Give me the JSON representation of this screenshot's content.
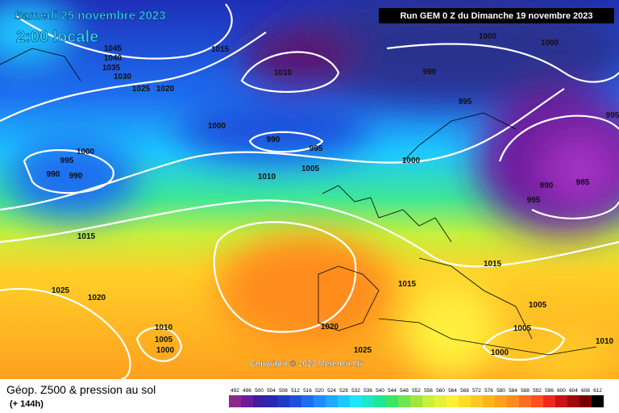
{
  "header": {
    "date": "Samedi 25 novembre 2023",
    "time": "2:00 locale",
    "run": "Run GEM 0 Z du Dimanche 19 novembre 2023"
  },
  "isobar_labels": [
    "1045",
    "1040",
    "1035",
    "1030",
    "1025",
    "1020",
    "1015",
    "1010",
    "1000",
    "1000",
    "990",
    "995",
    "1000",
    "990",
    "995",
    "1000",
    "995",
    "990",
    "990",
    "1010",
    "1005",
    "1000",
    "990",
    "985",
    "995",
    "995",
    "1015",
    "1015",
    "1015",
    "1025",
    "1020",
    "1005",
    "1005",
    "1010",
    "1005",
    "1000",
    "1020",
    "1025",
    "1000",
    "1010"
  ],
  "copyright": "Copyright © 2023 Meteociel.fr",
  "footer": {
    "title": "Géop. Z500 & pression au sol",
    "lead": "(+ 144h)"
  },
  "legend": {
    "labels": [
      492,
      496,
      500,
      504,
      508,
      512,
      516,
      520,
      524,
      528,
      532,
      536,
      540,
      544,
      548,
      552,
      556,
      560,
      564,
      568,
      572,
      576,
      580,
      584,
      588,
      592,
      596,
      600,
      604,
      608,
      612
    ],
    "colors": [
      "#8c2a8c",
      "#6e1c9e",
      "#3c1ea0",
      "#2828b4",
      "#1e3cc8",
      "#1e50dc",
      "#1e6ef0",
      "#1e8cff",
      "#1eaaff",
      "#1ec8ff",
      "#1ee6ff",
      "#1ee6c8",
      "#1ee696",
      "#3ce664",
      "#6ee650",
      "#a0e63c",
      "#c8f03c",
      "#e6f03c",
      "#fff03c",
      "#ffdc28",
      "#ffc828",
      "#ffb41e",
      "#ffa01e",
      "#ff8c1e",
      "#ff6e1e",
      "#ff501e",
      "#f0281e",
      "#c81414",
      "#a00a0a",
      "#780000",
      "#000000"
    ]
  }
}
